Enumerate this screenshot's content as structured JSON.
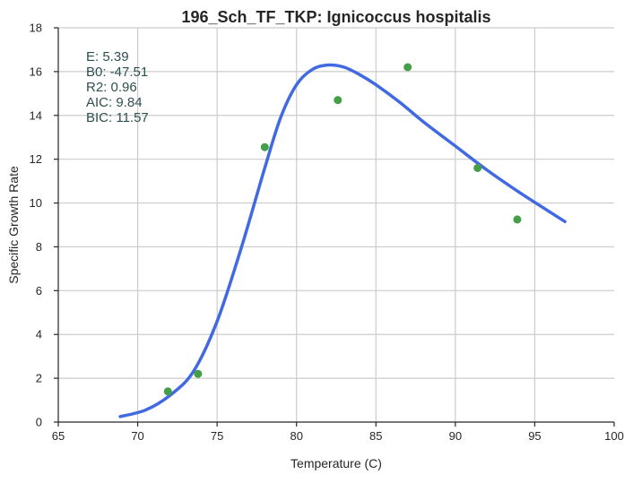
{
  "chart_data": {
    "type": "scatter",
    "title": "196_Sch_TF_TKP: Ignicoccus hospitalis",
    "xlabel": "Temperature (C)",
    "ylabel": "Specific Growth Rate",
    "xlim": [
      65,
      100
    ],
    "ylim": [
      0,
      18
    ],
    "xticks": [
      65,
      70,
      75,
      80,
      85,
      90,
      95,
      100
    ],
    "yticks": [
      0,
      2,
      4,
      6,
      8,
      10,
      12,
      14,
      16,
      18
    ],
    "grid": true,
    "series": [
      {
        "type": "scatter",
        "color": "#43a047",
        "points": [
          {
            "x": 71.9,
            "y": 1.4
          },
          {
            "x": 73.8,
            "y": 2.2
          },
          {
            "x": 78.0,
            "y": 12.55
          },
          {
            "x": 82.6,
            "y": 14.7
          },
          {
            "x": 87.0,
            "y": 16.2
          },
          {
            "x": 91.4,
            "y": 11.6
          },
          {
            "x": 93.9,
            "y": 9.25
          }
        ]
      },
      {
        "type": "line",
        "color": "#4169e1",
        "points": [
          {
            "x": 68.9,
            "y": 0.25
          },
          {
            "x": 70.5,
            "y": 0.55
          },
          {
            "x": 72.0,
            "y": 1.2
          },
          {
            "x": 73.5,
            "y": 2.3
          },
          {
            "x": 75.0,
            "y": 4.6
          },
          {
            "x": 76.5,
            "y": 7.9
          },
          {
            "x": 78.0,
            "y": 11.6
          },
          {
            "x": 79.0,
            "y": 13.9
          },
          {
            "x": 80.0,
            "y": 15.4
          },
          {
            "x": 81.0,
            "y": 16.1
          },
          {
            "x": 82.0,
            "y": 16.3
          },
          {
            "x": 83.0,
            "y": 16.2
          },
          {
            "x": 84.0,
            "y": 15.85
          },
          {
            "x": 85.0,
            "y": 15.4
          },
          {
            "x": 86.5,
            "y": 14.6
          },
          {
            "x": 88.0,
            "y": 13.7
          },
          {
            "x": 90.0,
            "y": 12.6
          },
          {
            "x": 92.0,
            "y": 11.5
          },
          {
            "x": 94.0,
            "y": 10.5
          },
          {
            "x": 95.5,
            "y": 9.8
          },
          {
            "x": 96.9,
            "y": 9.15
          }
        ]
      }
    ],
    "annotation": [
      "E:  5.39",
      "B0:  -47.51",
      "R2:  0.96",
      "AIC: 9.84",
      "BIC: 11.57"
    ]
  }
}
